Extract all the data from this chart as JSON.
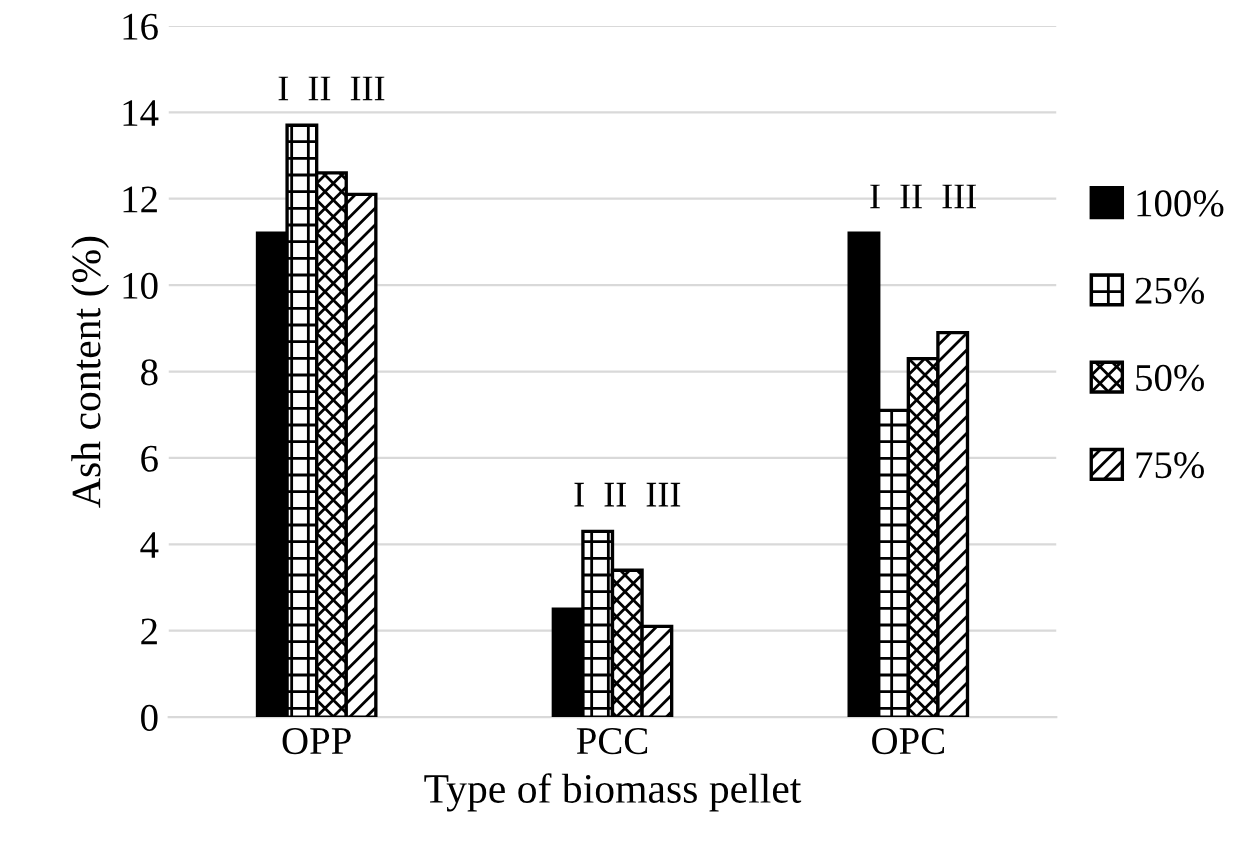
{
  "chart_data": {
    "type": "bar",
    "xlabel": "Type of biomass pellet",
    "ylabel": "Ash content (%)",
    "categories": [
      "OPP",
      "PCC",
      "OPC"
    ],
    "series": [
      {
        "name": "100%",
        "color": "#000000",
        "values": [
          11.2,
          2.5,
          11.2
        ]
      },
      {
        "name": "25%",
        "color": "#000000",
        "values": [
          13.7,
          4.3,
          7.1
        ]
      },
      {
        "name": "50%",
        "color": "#000000",
        "values": [
          12.6,
          3.4,
          8.3
        ]
      },
      {
        "name": "75%",
        "color": "#000000",
        "values": [
          12.1,
          2.1,
          8.9
        ]
      }
    ],
    "annotations": [
      "I  II  III",
      "I  II  III",
      "I  II  III"
    ],
    "ylim": [
      0,
      16
    ],
    "yticks": [
      0,
      2,
      4,
      6,
      8,
      10,
      12,
      14,
      16
    ],
    "grid": "y",
    "legend": "right"
  }
}
